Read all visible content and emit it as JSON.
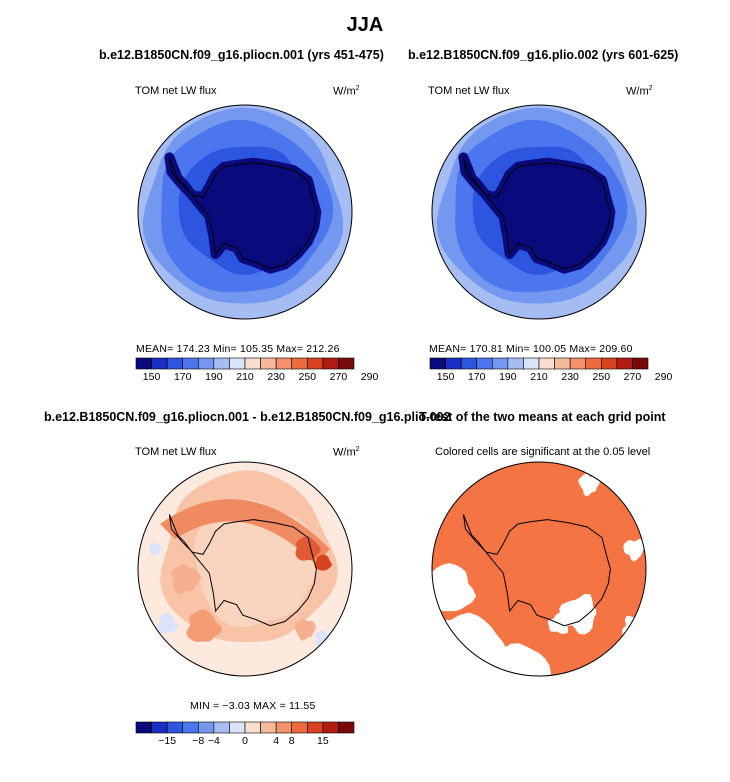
{
  "figure_title": "JJA",
  "panels": [
    {
      "title": "b.e12.B1850CN.f09_g16.pliocn.001 (yrs 451-475)",
      "left_label": "TOM net LW flux",
      "units": "W/m",
      "units_sup": "2",
      "stats": "MEAN=  174.23   Min=  105.35   Max=  212.26",
      "colorbar": {
        "colors": [
          "#0a0a7d",
          "#1b2fc6",
          "#2c55e0",
          "#4b76ee",
          "#7497f0",
          "#a6bdf3",
          "#dae3f8",
          "#f9ddcf",
          "#f7b99b",
          "#f2916a",
          "#eb6a3e",
          "#d8431f",
          "#b01c0f",
          "#7a0a0a"
        ],
        "labels": [
          "150",
          "170",
          "190",
          "210",
          "230",
          "250",
          "270",
          "290"
        ]
      }
    },
    {
      "title": "b.e12.B1850CN.f09_g16.plio.002 (yrs 601-625)",
      "left_label": "TOM net LW flux",
      "units": "W/m",
      "units_sup": "2",
      "stats": "MEAN=  170.81   Min=  100.05   Max=  209.60",
      "colorbar": {
        "colors": [
          "#0a0a7d",
          "#1b2fc6",
          "#2c55e0",
          "#4b76ee",
          "#7497f0",
          "#a6bdf3",
          "#dae3f8",
          "#f9ddcf",
          "#f7b99b",
          "#f2916a",
          "#eb6a3e",
          "#d8431f",
          "#b01c0f",
          "#7a0a0a"
        ],
        "labels": [
          "150",
          "170",
          "190",
          "210",
          "230",
          "250",
          "270",
          "290"
        ]
      }
    },
    {
      "title": "b.e12.B1850CN.f09_g16.pliocn.001 - b.e12.B1850CN.f09_g16.plio.002",
      "left_label": "TOM net LW flux",
      "units": "W/m",
      "units_sup": "2",
      "stats": "MIN  =   −3.03  MAX  =   11.55",
      "colorbar": {
        "colors": [
          "#0a0a7d",
          "#1b2fc6",
          "#2c55e0",
          "#4b76ee",
          "#7497f0",
          "#a6bdf3",
          "#dae3f8",
          "#f9ddcf",
          "#f7b99b",
          "#f2916a",
          "#eb6a3e",
          "#d8431f",
          "#b01c0f",
          "#7a0a0a"
        ],
        "labels": [
          "−15",
          "−8",
          "−4",
          "0",
          "4",
          "8",
          "15"
        ]
      }
    },
    {
      "title": "T-test of the two means at each grid point",
      "note": "Colored cells are significant at the 0.05 level",
      "significant_color": "#f47443"
    }
  ],
  "chart_data": [
    {
      "type": "heatmap",
      "projection": "south-polar-stereographic",
      "title": "b.e12.B1850CN.f09_g16.pliocn.001 (yrs 451-475)",
      "variable": "TOM net LW flux",
      "units": "W/m2",
      "mean": 174.23,
      "min": 105.35,
      "max": 212.26,
      "contour_levels": [
        150,
        160,
        170,
        180,
        190,
        200,
        210,
        220,
        230,
        240,
        250,
        260,
        270,
        280,
        290
      ],
      "colorbar_tick_labels": [
        150,
        170,
        190,
        210,
        230,
        250,
        270,
        290
      ]
    },
    {
      "type": "heatmap",
      "projection": "south-polar-stereographic",
      "title": "b.e12.B1850CN.f09_g16.plio.002 (yrs 601-625)",
      "variable": "TOM net LW flux",
      "units": "W/m2",
      "mean": 170.81,
      "min": 100.05,
      "max": 209.6,
      "contour_levels": [
        150,
        160,
        170,
        180,
        190,
        200,
        210,
        220,
        230,
        240,
        250,
        260,
        270,
        280,
        290
      ],
      "colorbar_tick_labels": [
        150,
        170,
        190,
        210,
        230,
        250,
        270,
        290
      ]
    },
    {
      "type": "heatmap",
      "projection": "south-polar-stereographic",
      "title": "b.e12.B1850CN.f09_g16.pliocn.001 - b.e12.B1850CN.f09_g16.plio.002",
      "variable": "TOM net LW flux",
      "units": "W/m2",
      "min": -3.03,
      "max": 11.55,
      "colorbar_tick_labels": [
        -15,
        -8,
        -4,
        0,
        4,
        8,
        15
      ]
    },
    {
      "type": "heatmap",
      "projection": "south-polar-stereographic",
      "title": "T-test of the two means at each grid point",
      "note": "Colored cells are significant at the 0.05 level",
      "significance_level": 0.05
    }
  ]
}
